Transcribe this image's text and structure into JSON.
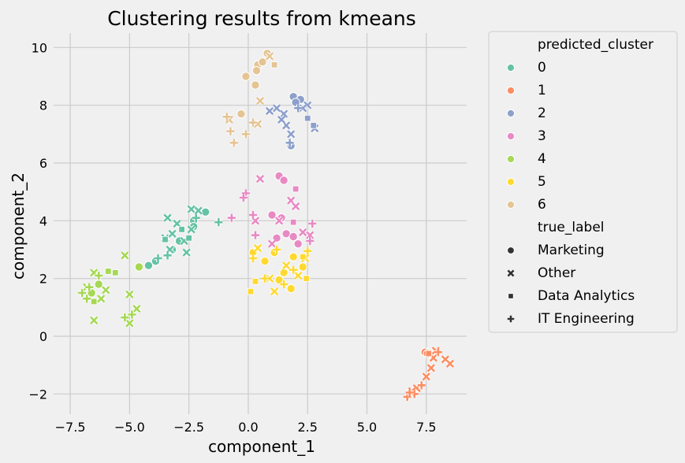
{
  "chart_data": {
    "type": "scatter",
    "title": "Clustering results from kmeans",
    "xlabel": "component_1",
    "ylabel": "component_2",
    "xlim": [
      -8.2,
      9.2
    ],
    "ylim": [
      -2.7,
      10.5
    ],
    "xticks": [
      -7.5,
      -5.0,
      -2.5,
      0.0,
      2.5,
      5.0,
      7.5
    ],
    "xtick_labels": [
      "−7.5",
      "−5.0",
      "−2.5",
      "0.0",
      "2.5",
      "5.0",
      "7.5"
    ],
    "yticks": [
      -2,
      0,
      2,
      4,
      6,
      8,
      10
    ],
    "ytick_labels": [
      "−2",
      "0",
      "2",
      "4",
      "6",
      "8",
      "10"
    ],
    "grid": true,
    "legend_placement": "outside right, top",
    "hue": {
      "title": "predicted_cluster",
      "levels": [
        {
          "name": "0",
          "color": "#66c2a5"
        },
        {
          "name": "1",
          "color": "#fc8d62"
        },
        {
          "name": "2",
          "color": "#8da0cb"
        },
        {
          "name": "3",
          "color": "#e78ac3"
        },
        {
          "name": "4",
          "color": "#a6d854"
        },
        {
          "name": "5",
          "color": "#ffd92f"
        },
        {
          "name": "6",
          "color": "#e5c494"
        }
      ]
    },
    "style": {
      "title": "true_label",
      "levels": [
        {
          "name": "Marketing",
          "marker": "circle"
        },
        {
          "name": "Other",
          "marker": "x"
        },
        {
          "name": "Data Analytics",
          "marker": "square"
        },
        {
          "name": "IT Engineering",
          "marker": "plus"
        }
      ]
    },
    "points": [
      {
        "x": -1.8,
        "y": 4.3,
        "cluster": 0,
        "label": "Marketing"
      },
      {
        "x": -2.3,
        "y": 4.0,
        "cluster": 0,
        "label": "Marketing"
      },
      {
        "x": -2.3,
        "y": 3.8,
        "cluster": 0,
        "label": "Marketing"
      },
      {
        "x": -3.2,
        "y": 3.0,
        "cluster": 0,
        "label": "Marketing"
      },
      {
        "x": -3.9,
        "y": 2.6,
        "cluster": 0,
        "label": "Marketing"
      },
      {
        "x": -4.2,
        "y": 2.45,
        "cluster": 0,
        "label": "Marketing"
      },
      {
        "x": -2.9,
        "y": 3.3,
        "cluster": 0,
        "label": "Marketing"
      },
      {
        "x": -2.4,
        "y": 4.4,
        "cluster": 0,
        "label": "Other"
      },
      {
        "x": -2.1,
        "y": 4.35,
        "cluster": 0,
        "label": "Other"
      },
      {
        "x": -2.4,
        "y": 3.7,
        "cluster": 0,
        "label": "Other"
      },
      {
        "x": -3.0,
        "y": 3.9,
        "cluster": 0,
        "label": "Other"
      },
      {
        "x": -3.4,
        "y": 4.1,
        "cluster": 0,
        "label": "Other"
      },
      {
        "x": -3.5,
        "y": 3.4,
        "cluster": 0,
        "label": "Other"
      },
      {
        "x": -2.7,
        "y": 3.3,
        "cluster": 0,
        "label": "Other"
      },
      {
        "x": -3.2,
        "y": 3.55,
        "cluster": 0,
        "label": "Other"
      },
      {
        "x": -2.6,
        "y": 2.9,
        "cluster": 0,
        "label": "Other"
      },
      {
        "x": -3.3,
        "y": 3.0,
        "cluster": 0,
        "label": "Other"
      },
      {
        "x": -2.5,
        "y": 3.4,
        "cluster": 0,
        "label": "Data Analytics"
      },
      {
        "x": -3.5,
        "y": 3.35,
        "cluster": 0,
        "label": "Data Analytics"
      },
      {
        "x": -2.8,
        "y": 3.7,
        "cluster": 0,
        "label": "Data Analytics"
      },
      {
        "x": -1.25,
        "y": 3.95,
        "cluster": 0,
        "label": "IT Engineering"
      },
      {
        "x": -3.8,
        "y": 2.7,
        "cluster": 0,
        "label": "IT Engineering"
      },
      {
        "x": -2.2,
        "y": 4.1,
        "cluster": 0,
        "label": "IT Engineering"
      },
      {
        "x": -3.4,
        "y": 2.8,
        "cluster": 0,
        "label": "IT Engineering"
      },
      {
        "x": 7.45,
        "y": -0.55,
        "cluster": 1,
        "label": "Marketing"
      },
      {
        "x": 7.55,
        "y": -0.6,
        "cluster": 1,
        "label": "Marketing"
      },
      {
        "x": 7.9,
        "y": -0.5,
        "cluster": 1,
        "label": "Other"
      },
      {
        "x": 7.8,
        "y": -0.75,
        "cluster": 1,
        "label": "Other"
      },
      {
        "x": 7.7,
        "y": -1.1,
        "cluster": 1,
        "label": "Other"
      },
      {
        "x": 8.3,
        "y": -0.8,
        "cluster": 1,
        "label": "Other"
      },
      {
        "x": 8.5,
        "y": -0.95,
        "cluster": 1,
        "label": "Other"
      },
      {
        "x": 7.5,
        "y": -1.4,
        "cluster": 1,
        "label": "Other"
      },
      {
        "x": 7.1,
        "y": -1.8,
        "cluster": 1,
        "label": "Other"
      },
      {
        "x": 6.9,
        "y": -1.9,
        "cluster": 1,
        "label": "Other"
      },
      {
        "x": 7.6,
        "y": -0.6,
        "cluster": 1,
        "label": "Data Analytics"
      },
      {
        "x": 8.0,
        "y": -0.55,
        "cluster": 1,
        "label": "IT Engineering"
      },
      {
        "x": 7.3,
        "y": -1.7,
        "cluster": 1,
        "label": "IT Engineering"
      },
      {
        "x": 7.0,
        "y": -2.0,
        "cluster": 1,
        "label": "IT Engineering"
      },
      {
        "x": 6.7,
        "y": -2.1,
        "cluster": 1,
        "label": "IT Engineering"
      },
      {
        "x": 6.8,
        "y": -1.95,
        "cluster": 1,
        "label": "IT Engineering"
      },
      {
        "x": 1.9,
        "y": 8.3,
        "cluster": 2,
        "label": "Marketing"
      },
      {
        "x": 2.2,
        "y": 8.2,
        "cluster": 2,
        "label": "Marketing"
      },
      {
        "x": 1.8,
        "y": 6.6,
        "cluster": 2,
        "label": "Marketing"
      },
      {
        "x": 2.0,
        "y": 8.1,
        "cluster": 2,
        "label": "Marketing"
      },
      {
        "x": 1.2,
        "y": 7.9,
        "cluster": 2,
        "label": "Other"
      },
      {
        "x": 0.9,
        "y": 7.8,
        "cluster": 2,
        "label": "Other"
      },
      {
        "x": 1.5,
        "y": 7.7,
        "cluster": 2,
        "label": "Other"
      },
      {
        "x": 1.6,
        "y": 7.3,
        "cluster": 2,
        "label": "Other"
      },
      {
        "x": 1.8,
        "y": 7.0,
        "cluster": 2,
        "label": "Other"
      },
      {
        "x": 2.5,
        "y": 8.0,
        "cluster": 2,
        "label": "Other"
      },
      {
        "x": 2.8,
        "y": 7.2,
        "cluster": 2,
        "label": "Other"
      },
      {
        "x": 2.3,
        "y": 7.9,
        "cluster": 2,
        "label": "Other"
      },
      {
        "x": 1.4,
        "y": 7.5,
        "cluster": 2,
        "label": "Other"
      },
      {
        "x": 2.5,
        "y": 7.55,
        "cluster": 2,
        "label": "Data Analytics"
      },
      {
        "x": 2.75,
        "y": 7.3,
        "cluster": 2,
        "label": "Data Analytics"
      },
      {
        "x": 1.75,
        "y": 6.7,
        "cluster": 2,
        "label": "IT Engineering"
      },
      {
        "x": 2.1,
        "y": 7.9,
        "cluster": 2,
        "label": "IT Engineering"
      },
      {
        "x": 1.3,
        "y": 5.55,
        "cluster": 3,
        "label": "Marketing"
      },
      {
        "x": 1.5,
        "y": 5.4,
        "cluster": 3,
        "label": "Marketing"
      },
      {
        "x": 1.0,
        "y": 4.2,
        "cluster": 3,
        "label": "Marketing"
      },
      {
        "x": 1.4,
        "y": 4.1,
        "cluster": 3,
        "label": "Marketing"
      },
      {
        "x": 1.2,
        "y": 3.4,
        "cluster": 3,
        "label": "Marketing"
      },
      {
        "x": 1.6,
        "y": 3.55,
        "cluster": 3,
        "label": "Marketing"
      },
      {
        "x": 1.9,
        "y": 3.45,
        "cluster": 3,
        "label": "Marketing"
      },
      {
        "x": 2.1,
        "y": 3.2,
        "cluster": 3,
        "label": "Marketing"
      },
      {
        "x": 0.5,
        "y": 5.45,
        "cluster": 3,
        "label": "Other"
      },
      {
        "x": 1.8,
        "y": 4.7,
        "cluster": 3,
        "label": "Other"
      },
      {
        "x": 2.0,
        "y": 4.5,
        "cluster": 3,
        "label": "Other"
      },
      {
        "x": 1.3,
        "y": 4.0,
        "cluster": 3,
        "label": "Other"
      },
      {
        "x": 0.3,
        "y": 4.0,
        "cluster": 3,
        "label": "Other"
      },
      {
        "x": 2.3,
        "y": 3.6,
        "cluster": 3,
        "label": "Other"
      },
      {
        "x": 2.6,
        "y": 3.5,
        "cluster": 3,
        "label": "Other"
      },
      {
        "x": 1.0,
        "y": 3.2,
        "cluster": 3,
        "label": "Other"
      },
      {
        "x": 2.0,
        "y": 5.1,
        "cluster": 3,
        "label": "Data Analytics"
      },
      {
        "x": 1.9,
        "y": 3.95,
        "cluster": 3,
        "label": "Data Analytics"
      },
      {
        "x": -0.1,
        "y": 4.95,
        "cluster": 3,
        "label": "IT Engineering"
      },
      {
        "x": -0.7,
        "y": 4.1,
        "cluster": 3,
        "label": "IT Engineering"
      },
      {
        "x": 0.2,
        "y": 4.2,
        "cluster": 3,
        "label": "IT Engineering"
      },
      {
        "x": 0.3,
        "y": 3.5,
        "cluster": 3,
        "label": "IT Engineering"
      },
      {
        "x": 2.7,
        "y": 3.9,
        "cluster": 3,
        "label": "IT Engineering"
      },
      {
        "x": 2.6,
        "y": 3.3,
        "cluster": 3,
        "label": "IT Engineering"
      },
      {
        "x": -0.2,
        "y": 4.8,
        "cluster": 3,
        "label": "IT Engineering"
      },
      {
        "x": -4.6,
        "y": 2.4,
        "cluster": 4,
        "label": "Marketing"
      },
      {
        "x": -6.3,
        "y": 1.8,
        "cluster": 4,
        "label": "Marketing"
      },
      {
        "x": -6.6,
        "y": 1.5,
        "cluster": 4,
        "label": "Marketing"
      },
      {
        "x": -5.2,
        "y": 2.8,
        "cluster": 4,
        "label": "Other"
      },
      {
        "x": -6.5,
        "y": 2.2,
        "cluster": 4,
        "label": "Other"
      },
      {
        "x": -6.8,
        "y": 1.7,
        "cluster": 4,
        "label": "Other"
      },
      {
        "x": -6.0,
        "y": 1.6,
        "cluster": 4,
        "label": "Other"
      },
      {
        "x": -5.0,
        "y": 1.45,
        "cluster": 4,
        "label": "Other"
      },
      {
        "x": -4.7,
        "y": 0.95,
        "cluster": 4,
        "label": "Other"
      },
      {
        "x": -5.0,
        "y": 0.45,
        "cluster": 4,
        "label": "Other"
      },
      {
        "x": -6.5,
        "y": 0.55,
        "cluster": 4,
        "label": "Other"
      },
      {
        "x": -6.2,
        "y": 1.3,
        "cluster": 4,
        "label": "Other"
      },
      {
        "x": -5.9,
        "y": 2.25,
        "cluster": 4,
        "label": "Data Analytics"
      },
      {
        "x": -5.6,
        "y": 2.2,
        "cluster": 4,
        "label": "Data Analytics"
      },
      {
        "x": -6.5,
        "y": 1.2,
        "cluster": 4,
        "label": "Data Analytics"
      },
      {
        "x": -6.3,
        "y": 2.1,
        "cluster": 4,
        "label": "IT Engineering"
      },
      {
        "x": -7.0,
        "y": 1.5,
        "cluster": 4,
        "label": "IT Engineering"
      },
      {
        "x": -6.8,
        "y": 1.3,
        "cluster": 4,
        "label": "IT Engineering"
      },
      {
        "x": -5.2,
        "y": 0.65,
        "cluster": 4,
        "label": "IT Engineering"
      },
      {
        "x": -4.9,
        "y": 0.75,
        "cluster": 4,
        "label": "IT Engineering"
      },
      {
        "x": -6.7,
        "y": 1.7,
        "cluster": 4,
        "label": "IT Engineering"
      },
      {
        "x": 0.2,
        "y": 2.9,
        "cluster": 5,
        "label": "Marketing"
      },
      {
        "x": 0.7,
        "y": 2.6,
        "cluster": 5,
        "label": "Marketing"
      },
      {
        "x": 1.1,
        "y": 2.9,
        "cluster": 5,
        "label": "Marketing"
      },
      {
        "x": 1.5,
        "y": 2.2,
        "cluster": 5,
        "label": "Marketing"
      },
      {
        "x": 1.3,
        "y": 1.95,
        "cluster": 5,
        "label": "Marketing"
      },
      {
        "x": 1.9,
        "y": 2.75,
        "cluster": 5,
        "label": "Marketing"
      },
      {
        "x": 1.8,
        "y": 1.65,
        "cluster": 5,
        "label": "Marketing"
      },
      {
        "x": 2.3,
        "y": 2.4,
        "cluster": 5,
        "label": "Marketing"
      },
      {
        "x": 0.4,
        "y": 3.05,
        "cluster": 5,
        "label": "Other"
      },
      {
        "x": 1.6,
        "y": 2.45,
        "cluster": 5,
        "label": "Other"
      },
      {
        "x": 2.1,
        "y": 2.1,
        "cluster": 5,
        "label": "Other"
      },
      {
        "x": 0.9,
        "y": 2.0,
        "cluster": 5,
        "label": "Other"
      },
      {
        "x": 1.1,
        "y": 1.55,
        "cluster": 5,
        "label": "Other"
      },
      {
        "x": 2.4,
        "y": 2.7,
        "cluster": 5,
        "label": "Other"
      },
      {
        "x": 0.3,
        "y": 1.9,
        "cluster": 5,
        "label": "Data Analytics"
      },
      {
        "x": 0.1,
        "y": 1.55,
        "cluster": 5,
        "label": "Data Analytics"
      },
      {
        "x": 2.3,
        "y": 2.75,
        "cluster": 5,
        "label": "Data Analytics"
      },
      {
        "x": 2.45,
        "y": 2.0,
        "cluster": 5,
        "label": "Data Analytics"
      },
      {
        "x": 0.2,
        "y": 2.7,
        "cluster": 5,
        "label": "IT Engineering"
      },
      {
        "x": 1.2,
        "y": 3.0,
        "cluster": 5,
        "label": "IT Engineering"
      },
      {
        "x": 0.7,
        "y": 2.0,
        "cluster": 5,
        "label": "IT Engineering"
      },
      {
        "x": 1.9,
        "y": 2.3,
        "cluster": 5,
        "label": "IT Engineering"
      },
      {
        "x": 2.5,
        "y": 2.95,
        "cluster": 5,
        "label": "IT Engineering"
      },
      {
        "x": 1.5,
        "y": 1.8,
        "cluster": 5,
        "label": "IT Engineering"
      },
      {
        "x": 0.8,
        "y": 9.8,
        "cluster": 6,
        "label": "Marketing"
      },
      {
        "x": 0.4,
        "y": 9.4,
        "cluster": 6,
        "label": "Marketing"
      },
      {
        "x": 0.35,
        "y": 9.2,
        "cluster": 6,
        "label": "Marketing"
      },
      {
        "x": -0.1,
        "y": 9.0,
        "cluster": 6,
        "label": "Marketing"
      },
      {
        "x": 0.3,
        "y": 8.7,
        "cluster": 6,
        "label": "Marketing"
      },
      {
        "x": -0.3,
        "y": 7.7,
        "cluster": 6,
        "label": "Marketing"
      },
      {
        "x": 0.6,
        "y": 9.5,
        "cluster": 6,
        "label": "Marketing"
      },
      {
        "x": 0.9,
        "y": 9.7,
        "cluster": 6,
        "label": "Other"
      },
      {
        "x": 0.5,
        "y": 8.15,
        "cluster": 6,
        "label": "Other"
      },
      {
        "x": 0.4,
        "y": 7.35,
        "cluster": 6,
        "label": "Other"
      },
      {
        "x": -0.8,
        "y": 7.5,
        "cluster": 6,
        "label": "Other"
      },
      {
        "x": 1.1,
        "y": 9.4,
        "cluster": 6,
        "label": "Data Analytics"
      },
      {
        "x": -0.9,
        "y": 7.6,
        "cluster": 6,
        "label": "IT Engineering"
      },
      {
        "x": -0.75,
        "y": 7.1,
        "cluster": 6,
        "label": "IT Engineering"
      },
      {
        "x": -0.6,
        "y": 6.7,
        "cluster": 6,
        "label": "IT Engineering"
      },
      {
        "x": -0.1,
        "y": 7.0,
        "cluster": 6,
        "label": "IT Engineering"
      },
      {
        "x": 0.2,
        "y": 7.4,
        "cluster": 6,
        "label": "IT Engineering"
      }
    ]
  }
}
